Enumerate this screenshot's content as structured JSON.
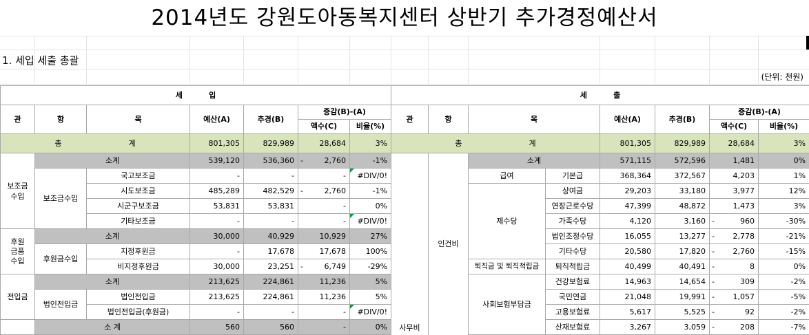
{
  "title": "2014년도 강원도아동복지센터 상반기 추가경정예산서",
  "section": "1. 세입 세출 총괄",
  "unit": "(단위: 천원)",
  "revenue": {
    "header": "세          입",
    "cols": {
      "kwan": "관",
      "hang": "항",
      "mok": "목",
      "budget": "예산(A)",
      "revised": "추경(B)",
      "diff": "증감(B)-(A)",
      "amount": "액수(C)",
      "ratio": "비율(%)"
    },
    "total": {
      "label1": "총",
      "label2": "계",
      "budget": "801,305",
      "revised": "829,989",
      "amount": "28,684",
      "ratio": "3%"
    },
    "groups": {
      "g1_kwan": "보조금\n수입",
      "g1_hang": "보조금수입",
      "g2_kwan": "후원\n금품\n수입",
      "g2_hang": "후원금수입",
      "g3_kwan": "전입금",
      "g3_hang": "법인전입금"
    },
    "rows": [
      {
        "mok": "소계",
        "budget": "539,120",
        "revised": "536,360",
        "sign": "-",
        "amount": "2,760",
        "ratio": "-1%"
      },
      {
        "mok": "국고보조금",
        "budget": "-",
        "revised": "-",
        "sign": "",
        "amount": "-",
        "ratio": "#DIV/0!"
      },
      {
        "mok": "시도보조금",
        "budget": "485,289",
        "revised": "482,529",
        "sign": "-",
        "amount": "2,760",
        "ratio": "-1%"
      },
      {
        "mok": "시군구보조금",
        "budget": "53,831",
        "revised": "53,831",
        "sign": "",
        "amount": "-",
        "ratio": "0%"
      },
      {
        "mok": "기타보조금",
        "budget": "-",
        "revised": "-",
        "sign": "",
        "amount": "-",
        "ratio": "#DIV/0!"
      },
      {
        "mok": "소계",
        "budget": "30,000",
        "revised": "40,929",
        "sign": "",
        "amount": "10,929",
        "ratio": "27%"
      },
      {
        "mok": "지정후원금",
        "budget": "-",
        "revised": "17,678",
        "sign": "",
        "amount": "17,678",
        "ratio": "100%"
      },
      {
        "mok": "비지정후원금",
        "budget": "30,000",
        "revised": "23,251",
        "sign": "-",
        "amount": "6,749",
        "ratio": "-29%"
      },
      {
        "mok": "소계",
        "budget": "213,625",
        "revised": "224,861",
        "sign": "",
        "amount": "11,236",
        "ratio": "5%"
      },
      {
        "mok": "법인전입금",
        "budget": "213,625",
        "revised": "224,861",
        "sign": "",
        "amount": "11,236",
        "ratio": "5%"
      },
      {
        "mok": "법인전입금(후원금)",
        "budget": "-",
        "revised": "-",
        "sign": "",
        "amount": "-",
        "ratio": "#DIV/0!"
      },
      {
        "mok": "소 계",
        "budget": "560",
        "revised": "560",
        "sign": "",
        "amount": "-",
        "ratio": "0%"
      }
    ]
  },
  "expense": {
    "header": "세          출",
    "cols": {
      "kwan": "관",
      "hang": "항",
      "mok": "목",
      "budget": "예산(A)",
      "revised": "추경(B)",
      "diff": "증감(B)-(A)",
      "amount": "액수(C)",
      "ratio": "비율(%)"
    },
    "total": {
      "label1": "총",
      "label2": "계",
      "budget": "801,305",
      "revised": "829,989",
      "amount": "28,684",
      "ratio": "3%"
    },
    "kwan": "사무비",
    "hang": "인건비",
    "subtotal": {
      "label": "소계",
      "budget": "571,115",
      "revised": "572,596",
      "sign": "",
      "amount": "1,481",
      "ratio": "0%"
    },
    "groups": {
      "salary": "급여",
      "allowance": "제수당",
      "retire": "퇴직금 및 퇴직적립금",
      "insurance": "사회보험부담금"
    },
    "rows": [
      {
        "mok": "기본급",
        "budget": "368,364",
        "revised": "372,567",
        "sign": "",
        "amount": "4,203",
        "ratio": "1%"
      },
      {
        "mok": "상여금",
        "budget": "29,203",
        "revised": "33,180",
        "sign": "",
        "amount": "3,977",
        "ratio": "12%"
      },
      {
        "mok": "연장근로수당",
        "budget": "47,399",
        "revised": "48,872",
        "sign": "",
        "amount": "1,473",
        "ratio": "3%"
      },
      {
        "mok": "가족수당",
        "budget": "4,120",
        "revised": "3,160",
        "sign": "-",
        "amount": "960",
        "ratio": "-30%"
      },
      {
        "mok": "법인조정수당",
        "budget": "16,055",
        "revised": "13,277",
        "sign": "-",
        "amount": "2,778",
        "ratio": "-21%"
      },
      {
        "mok": "기타수당",
        "budget": "20,580",
        "revised": "17,820",
        "sign": "-",
        "amount": "2,760",
        "ratio": "-15%"
      },
      {
        "mok": "퇴직적립금",
        "budget": "40,499",
        "revised": "40,491",
        "sign": "-",
        "amount": "8",
        "ratio": "0%"
      },
      {
        "mok": "건강보험료",
        "budget": "14,963",
        "revised": "14,654",
        "sign": "-",
        "amount": "309",
        "ratio": "-2%"
      },
      {
        "mok": "국민연금",
        "budget": "21,048",
        "revised": "19,991",
        "sign": "-",
        "amount": "1,057",
        "ratio": "-5%"
      },
      {
        "mok": "고용보험료",
        "budget": "5,617",
        "revised": "5,525",
        "sign": "-",
        "amount": "92",
        "ratio": "-2%"
      },
      {
        "mok": "산재보험료",
        "budget": "3,267",
        "revised": "3,059",
        "sign": "-",
        "amount": "208",
        "ratio": "-7%"
      }
    ]
  }
}
